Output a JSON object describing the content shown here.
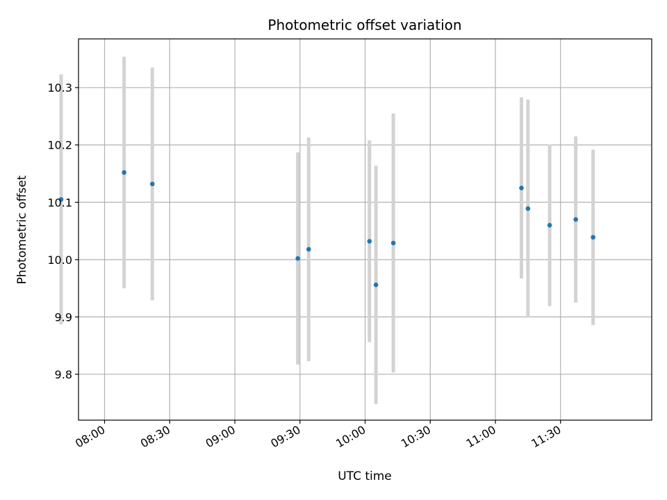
{
  "chart_data": {
    "type": "scatter",
    "title": "Photometric offset variation",
    "xlabel": "UTC time",
    "ylabel": "Photometric offset",
    "x_axis": {
      "kind": "time",
      "range": [
        "07:48",
        "12:12"
      ],
      "ticks": [
        "08:00",
        "08:30",
        "09:00",
        "09:30",
        "10:00",
        "10:30",
        "11:00",
        "11:30"
      ]
    },
    "y_axis": {
      "range": [
        9.72,
        10.385
      ],
      "ticks": [
        9.8,
        9.9,
        10.0,
        10.1,
        10.2,
        10.3
      ],
      "tick_labels": [
        "9.8",
        "9.9",
        "10.0",
        "10.1",
        "10.2",
        "10.3"
      ]
    },
    "grid": true,
    "series": [
      {
        "marker_color": "#1f77b4",
        "errorbar_color": "#d3d3d3",
        "points": [
          {
            "x": "07:40",
            "y": 10.105,
            "yerr": 0.218
          },
          {
            "x": "08:09",
            "y": 10.152,
            "yerr": 0.202
          },
          {
            "x": "08:22",
            "y": 10.132,
            "yerr": 0.203
          },
          {
            "x": "09:29",
            "y": 10.002,
            "yerr": 0.185
          },
          {
            "x": "09:34",
            "y": 10.018,
            "yerr": 0.195
          },
          {
            "x": "10:02",
            "y": 10.032,
            "yerr": 0.176
          },
          {
            "x": "10:05",
            "y": 9.956,
            "yerr": 0.208
          },
          {
            "x": "10:13",
            "y": 10.029,
            "yerr": 0.226
          },
          {
            "x": "11:12",
            "y": 10.125,
            "yerr": 0.158
          },
          {
            "x": "11:15",
            "y": 10.089,
            "yerr": 0.19
          },
          {
            "x": "11:25",
            "y": 10.06,
            "yerr": 0.141
          },
          {
            "x": "11:37",
            "y": 10.07,
            "yerr": 0.145
          },
          {
            "x": "11:45",
            "y": 10.039,
            "yerr": 0.153
          }
        ]
      }
    ]
  }
}
